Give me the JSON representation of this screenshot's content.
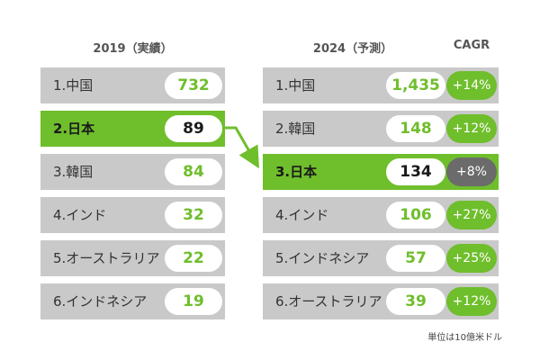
{
  "colors": {
    "green": "#6fbe2c",
    "gray_row": "#c9c9c9",
    "cagr_dark": "#6b6b6b",
    "text": "#333333"
  },
  "chart_data": [
    {
      "type": "table",
      "title": "2019（実績）",
      "rows": [
        {
          "label": "1.中国",
          "value": "732",
          "highlight": false
        },
        {
          "label": "2.日本",
          "value": "89",
          "highlight": true
        },
        {
          "label": "3.韓国",
          "value": "84",
          "highlight": false
        },
        {
          "label": "4.インド",
          "value": "32",
          "highlight": false
        },
        {
          "label": "5.オーストラリア",
          "value": "22",
          "highlight": false
        },
        {
          "label": "6.インドネシア",
          "value": "19",
          "highlight": false
        }
      ]
    },
    {
      "type": "table",
      "title": "2024（予測）",
      "cagr_header": "CAGR",
      "rows": [
        {
          "label": "1.中国",
          "value": "1,435",
          "cagr": "+14%",
          "highlight": false
        },
        {
          "label": "2.韓国",
          "value": "148",
          "cagr": "+12%",
          "highlight": false
        },
        {
          "label": "3.日本",
          "value": "134",
          "cagr": "+8%",
          "highlight": true
        },
        {
          "label": "4.インド",
          "value": "106",
          "cagr": "+27%",
          "highlight": false
        },
        {
          "label": "5.インドネシア",
          "value": "57",
          "cagr": "+25%",
          "highlight": false
        },
        {
          "label": "6.オーストラリア",
          "value": "39",
          "cagr": "+12%",
          "highlight": false
        }
      ]
    }
  ],
  "unit_note": "単位は10億米ドル"
}
